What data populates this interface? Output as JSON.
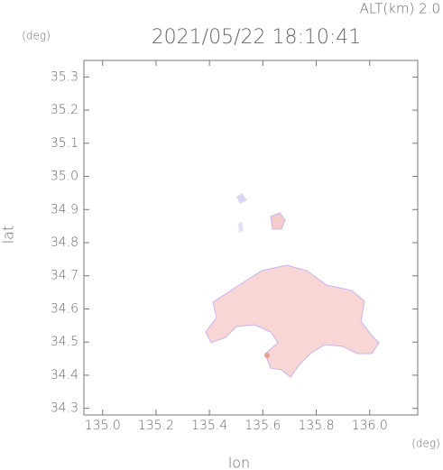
{
  "chart_data": {
    "type": "map",
    "title": "2021/05/22 18:10:41",
    "annotations": [
      "ALT(km) 2.0",
      "(deg)",
      "(deg)"
    ],
    "x_label": "lon",
    "y_label": "lat",
    "xlim": [
      134.93,
      136.18
    ],
    "ylim": [
      34.28,
      35.35
    ],
    "xticks": [
      {
        "value": 135,
        "label": "135.0"
      },
      135.2,
      135.4,
      135.6,
      135.8,
      {
        "value": 136,
        "label": "136.0"
      }
    ],
    "yticks": [
      34.3,
      34.4,
      34.5,
      34.6,
      34.7,
      34.8,
      34.9,
      {
        "value": 35,
        "label": "35.0"
      },
      35.1,
      35.2,
      35.3
    ]
  }
}
